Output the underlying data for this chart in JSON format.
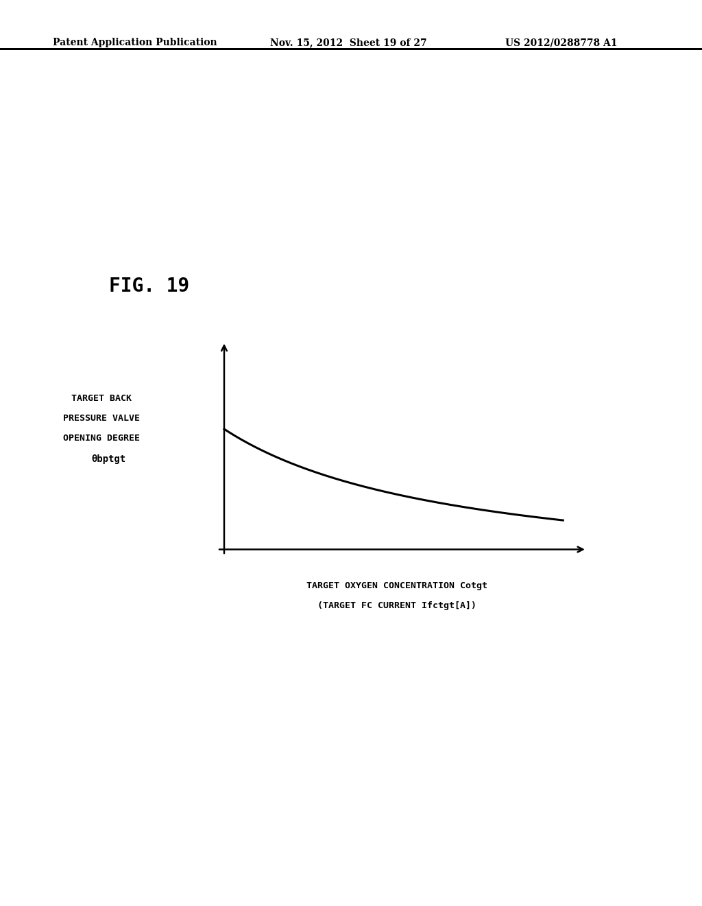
{
  "fig_label": "FIG. 19",
  "header_left": "Patent Application Publication",
  "header_mid": "Nov. 15, 2012  Sheet 19 of 27",
  "header_right": "US 2012/0288778 A1",
  "ylabel_line1": "TARGET BACK",
  "ylabel_line2": "PRESSURE VALVE",
  "ylabel_line3": "OPENING DEGREE",
  "ylabel_line4": "θbptgt",
  "xlabel_line1": "TARGET OXYGEN CONCENTRATION Cotgt",
  "xlabel_line2": "(TARGET FC CURRENT Ifctgt[A])",
  "curve_color": "#000000",
  "background_color": "#ffffff"
}
